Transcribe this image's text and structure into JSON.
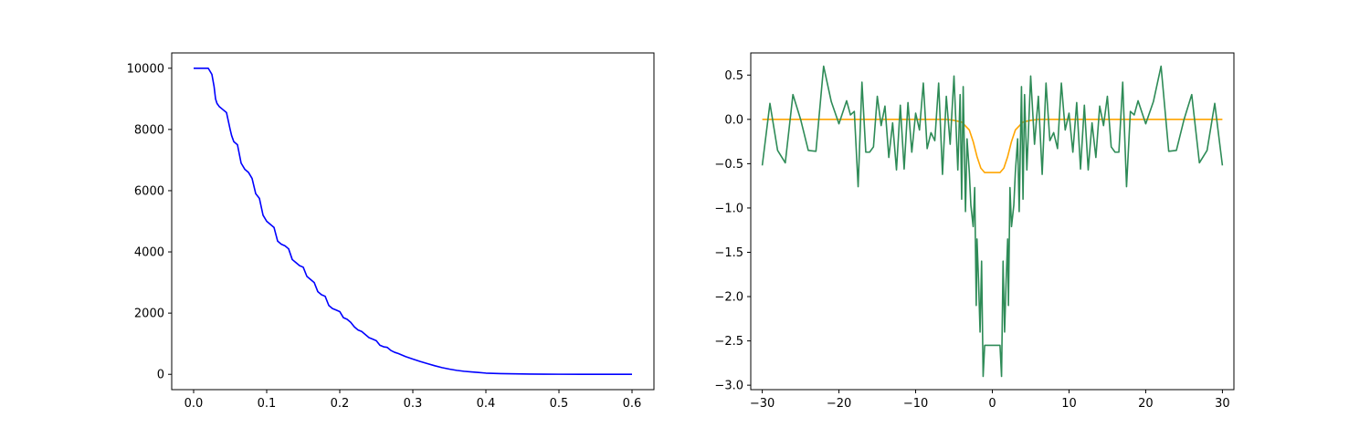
{
  "chart_data": [
    {
      "type": "line",
      "title": "",
      "xlabel": "",
      "ylabel": "",
      "xlim": [
        -0.03,
        0.63
      ],
      "ylim": [
        -500,
        10500
      ],
      "xticks": [
        0.0,
        0.1,
        0.2,
        0.3,
        0.4,
        0.5,
        0.6
      ],
      "xtick_labels": [
        "0.0",
        "0.1",
        "0.2",
        "0.3",
        "0.4",
        "0.5",
        "0.6"
      ],
      "yticks": [
        0,
        2000,
        4000,
        6000,
        8000,
        10000
      ],
      "ytick_labels": [
        "0",
        "2000",
        "4000",
        "6000",
        "8000",
        "10000"
      ],
      "grid": false,
      "series": [
        {
          "color": "#0000ff",
          "x": [
            0.0,
            0.02,
            0.025,
            0.028,
            0.03,
            0.032,
            0.035,
            0.04,
            0.045,
            0.05,
            0.052,
            0.055,
            0.06,
            0.065,
            0.07,
            0.075,
            0.08,
            0.085,
            0.09,
            0.095,
            0.1,
            0.105,
            0.11,
            0.115,
            0.12,
            0.125,
            0.13,
            0.135,
            0.14,
            0.145,
            0.15,
            0.155,
            0.16,
            0.165,
            0.17,
            0.175,
            0.18,
            0.185,
            0.19,
            0.195,
            0.2,
            0.205,
            0.21,
            0.215,
            0.22,
            0.225,
            0.23,
            0.235,
            0.24,
            0.245,
            0.25,
            0.255,
            0.26,
            0.265,
            0.27,
            0.275,
            0.28,
            0.29,
            0.3,
            0.31,
            0.32,
            0.33,
            0.34,
            0.35,
            0.36,
            0.37,
            0.38,
            0.39,
            0.4,
            0.42,
            0.44,
            0.46,
            0.48,
            0.5,
            0.55,
            0.6
          ],
          "y": [
            10000,
            10000,
            9800,
            9400,
            9000,
            8850,
            8750,
            8650,
            8550,
            8000,
            7800,
            7600,
            7500,
            6900,
            6700,
            6600,
            6400,
            5900,
            5750,
            5200,
            5000,
            4900,
            4800,
            4350,
            4250,
            4200,
            4100,
            3750,
            3650,
            3550,
            3500,
            3200,
            3100,
            3000,
            2700,
            2600,
            2550,
            2250,
            2150,
            2100,
            2050,
            1850,
            1800,
            1700,
            1550,
            1450,
            1400,
            1300,
            1200,
            1150,
            1100,
            950,
            900,
            880,
            780,
            720,
            680,
            580,
            500,
            420,
            350,
            280,
            220,
            170,
            130,
            100,
            80,
            60,
            40,
            25,
            15,
            10,
            5,
            3,
            1,
            0
          ]
        }
      ]
    },
    {
      "type": "line",
      "title": "",
      "xlabel": "",
      "ylabel": "",
      "xlim": [
        -31.5,
        31.5
      ],
      "ylim": [
        -3.05,
        0.75
      ],
      "xticks": [
        -30,
        -20,
        -10,
        0,
        10,
        20,
        30
      ],
      "xtick_labels": [
        "−30",
        "−20",
        "−10",
        "0",
        "10",
        "20",
        "30"
      ],
      "yticks": [
        0.5,
        0.0,
        -0.5,
        -1.0,
        -1.5,
        -2.0,
        -2.5,
        -3.0
      ],
      "ytick_labels": [
        "0.5",
        "0.0",
        "−0.5",
        "−1.0",
        "−1.5",
        "−2.0",
        "−2.5",
        "−3.0"
      ],
      "grid": false,
      "series": [
        {
          "color": "#ffa500",
          "x": [
            -30,
            -6,
            -5,
            -4,
            -3,
            -2.5,
            -2,
            -1.5,
            -1,
            1,
            1.5,
            2,
            2.5,
            3,
            4,
            5,
            6,
            30
          ],
          "y": [
            0.0,
            0.0,
            -0.01,
            -0.03,
            -0.12,
            -0.25,
            -0.42,
            -0.55,
            -0.6,
            -0.6,
            -0.55,
            -0.42,
            -0.25,
            -0.12,
            -0.03,
            -0.01,
            0.0,
            0.0
          ]
        },
        {
          "color": "#2e8b57",
          "x": [
            -30,
            -29,
            -28,
            -27,
            -26,
            -25,
            -24,
            -23,
            -22,
            -21,
            -20,
            -19,
            -18.5,
            -18,
            -17.5,
            -17,
            -16.5,
            -16,
            -15.5,
            -15,
            -14.5,
            -14,
            -13.5,
            -13,
            -12.5,
            -12,
            -11.5,
            -11,
            -10.5,
            -10,
            -9.5,
            -9,
            -8.5,
            -8,
            -7.5,
            -7,
            -6.5,
            -6,
            -5.5,
            -5,
            -4.5,
            -4.2,
            -4,
            -3.8,
            -3.5,
            -3.3,
            -3,
            -2.8,
            -2.5,
            -2.3,
            -2.1,
            -2,
            -1.8,
            -1.6,
            -1.4,
            -1.2,
            -1,
            1,
            1.2,
            1.4,
            1.6,
            1.8,
            2,
            2.1,
            2.3,
            2.5,
            2.8,
            3,
            3.3,
            3.5,
            3.8,
            4,
            4.2,
            4.5,
            5,
            5.5,
            6,
            6.5,
            7,
            7.5,
            8,
            8.5,
            9,
            9.5,
            10,
            10.5,
            11,
            11.5,
            12,
            12.5,
            13,
            13.5,
            14,
            14.5,
            15,
            15.5,
            16,
            16.5,
            17,
            17.5,
            18,
            18.5,
            19,
            20,
            21,
            22,
            23,
            24,
            25,
            26,
            27,
            28,
            29,
            30
          ],
          "y": [
            -0.52,
            0.18,
            -0.35,
            -0.49,
            0.28,
            0.0,
            -0.35,
            -0.36,
            0.6,
            0.2,
            -0.05,
            0.21,
            0.05,
            0.09,
            -0.76,
            0.42,
            -0.37,
            -0.37,
            -0.31,
            0.26,
            -0.07,
            0.15,
            -0.43,
            -0.04,
            -0.57,
            0.16,
            -0.56,
            0.19,
            -0.37,
            0.07,
            -0.12,
            0.41,
            -0.33,
            -0.15,
            -0.24,
            0.41,
            -0.62,
            0.26,
            -0.28,
            0.49,
            -0.57,
            0.28,
            -0.9,
            0.37,
            -1.04,
            -0.22,
            -0.6,
            -0.97,
            -1.21,
            -0.77,
            -2.1,
            -1.35,
            -1.82,
            -2.4,
            -1.6,
            -2.9,
            -2.55,
            -2.55,
            -2.9,
            -1.6,
            -2.4,
            -1.82,
            -1.35,
            -2.1,
            -0.77,
            -1.21,
            -0.97,
            -0.6,
            -0.22,
            -1.04,
            0.37,
            -0.9,
            0.28,
            -0.57,
            0.49,
            -0.28,
            0.26,
            -0.62,
            0.41,
            -0.24,
            -0.15,
            -0.33,
            0.41,
            -0.12,
            0.07,
            -0.37,
            0.19,
            -0.56,
            0.16,
            -0.57,
            -0.04,
            -0.43,
            0.15,
            -0.07,
            0.26,
            -0.31,
            -0.37,
            -0.37,
            0.42,
            -0.76,
            0.09,
            0.05,
            0.21,
            -0.05,
            0.2,
            0.6,
            -0.36,
            -0.35,
            0.0,
            0.28,
            -0.49,
            -0.35,
            0.18,
            -0.52
          ]
        }
      ]
    }
  ]
}
